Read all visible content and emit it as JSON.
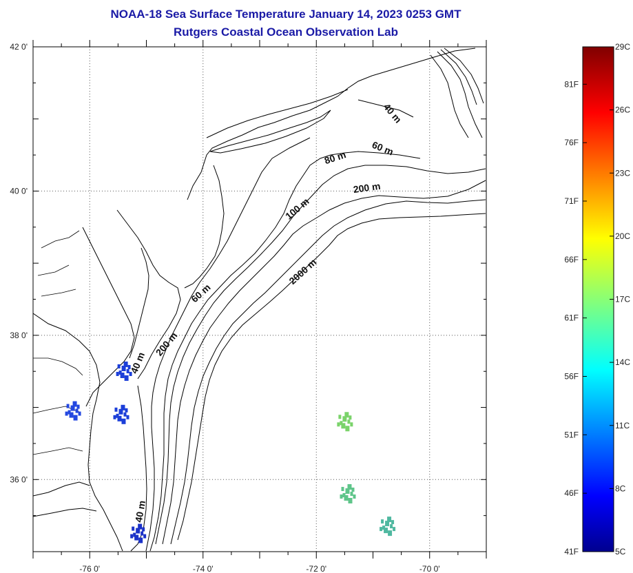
{
  "title": {
    "line1": "NOAA-18 Sea Surface Temperature January 14, 2023 0253 GMT",
    "line2": "Rutgers Coastal Ocean Observation Lab"
  },
  "map": {
    "lon_range": [
      -77,
      -69
    ],
    "lat_range": [
      35,
      42
    ],
    "lon_ticks": [
      {
        "value": -76,
        "label": "-76 0'"
      },
      {
        "value": -74,
        "label": "-74 0'"
      },
      {
        "value": -72,
        "label": "-72 0'"
      },
      {
        "value": -70,
        "label": "-70 0'"
      }
    ],
    "lat_ticks": [
      {
        "value": 42,
        "label": "42 0'"
      },
      {
        "value": 40,
        "label": "40 0'"
      },
      {
        "value": 38,
        "label": "38 0'"
      },
      {
        "value": 36,
        "label": "36 0'"
      }
    ],
    "grid": "dotted",
    "contour_labels": [
      {
        "text": "40 m",
        "lon": -70.7,
        "lat": 41.05,
        "angle": 50
      },
      {
        "text": "60 m",
        "lon": -70.85,
        "lat": 40.55,
        "angle": 22
      },
      {
        "text": "80 m",
        "lon": -71.65,
        "lat": 40.42,
        "angle": -18
      },
      {
        "text": "200 m",
        "lon": -71.1,
        "lat": 40.0,
        "angle": -8
      },
      {
        "text": "100 m",
        "lon": -72.3,
        "lat": 39.72,
        "angle": -40
      },
      {
        "text": "2000 m",
        "lon": -72.2,
        "lat": 38.85,
        "angle": -42
      },
      {
        "text": "60 m",
        "lon": -74.0,
        "lat": 38.55,
        "angle": -42
      },
      {
        "text": "200 m",
        "lon": -74.6,
        "lat": 37.85,
        "angle": -50
      },
      {
        "text": "40 m",
        "lon": -75.1,
        "lat": 37.6,
        "angle": -68
      },
      {
        "text": "40 m",
        "lon": -75.05,
        "lat": 35.55,
        "angle": -80
      }
    ],
    "sst_patches": [
      {
        "lon": -75.4,
        "lat": 37.55,
        "color": "#1c3fd9"
      },
      {
        "lon": -75.45,
        "lat": 36.95,
        "color": "#1c3fd9"
      },
      {
        "lon": -76.3,
        "lat": 37.0,
        "color": "#2448e0"
      },
      {
        "lon": -75.15,
        "lat": 35.3,
        "color": "#1b32c8"
      },
      {
        "lon": -71.5,
        "lat": 36.85,
        "color": "#7ad36a"
      },
      {
        "lon": -71.45,
        "lat": 35.85,
        "color": "#5fc58a"
      },
      {
        "lon": -70.75,
        "lat": 35.4,
        "color": "#4fb8a0"
      }
    ]
  },
  "colorbar": {
    "min_c": 5,
    "max_c": 29,
    "celsius_labels": [
      "29C",
      "26C",
      "23C",
      "20C",
      "17C",
      "14C",
      "11C",
      "8C",
      "5C"
    ],
    "fahrenheit_labels": [
      "81F",
      "76F",
      "71F",
      "66F",
      "61F",
      "56F",
      "51F",
      "46F",
      "41F"
    ],
    "fahrenheit_values": [
      81,
      76,
      71,
      66,
      61,
      56,
      51,
      46,
      41
    ],
    "colormap": "jet"
  }
}
